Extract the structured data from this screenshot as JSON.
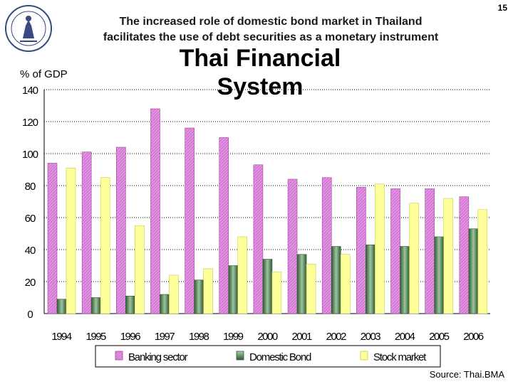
{
  "header": {
    "line1": "The increased role of domestic bond market in Thailand",
    "line2": "facilitates the use of debt securities as a monetary instrument",
    "page_number": "15",
    "big_title_line1": "Thai Financial",
    "big_title_line2": "System"
  },
  "footer": {
    "source": "Source: Thai.BMA"
  },
  "logo": {
    "icon": "bank-of-thailand-seal-icon"
  },
  "chart_data": {
    "type": "bar",
    "ylabel": "% of GDP",
    "ylim": [
      0,
      140
    ],
    "yticks": [
      "0",
      "20",
      "40",
      "60",
      "80",
      "100",
      "120",
      "140"
    ],
    "categories": [
      "1994",
      "1995",
      "1996",
      "1997",
      "1998",
      "1999",
      "2000",
      "2001",
      "2002",
      "2003",
      "2004",
      "2005",
      "2006"
    ],
    "series": [
      {
        "name": "Banking sector",
        "color": "#cc66cc",
        "values": [
          94,
          101,
          104,
          128,
          116,
          110,
          93,
          84,
          85,
          79,
          78,
          78,
          73
        ]
      },
      {
        "name": "Domestic Bond",
        "color": "#55885a",
        "values": [
          9,
          10,
          11,
          12,
          21,
          30,
          34,
          37,
          42,
          43,
          42,
          48,
          53
        ]
      },
      {
        "name": "Stock market",
        "color": "#ffff99",
        "values": [
          91,
          85,
          55,
          24,
          28,
          48,
          26,
          31,
          37,
          81,
          69,
          72,
          65
        ]
      }
    ],
    "grid": true,
    "legend_position": "bottom"
  }
}
